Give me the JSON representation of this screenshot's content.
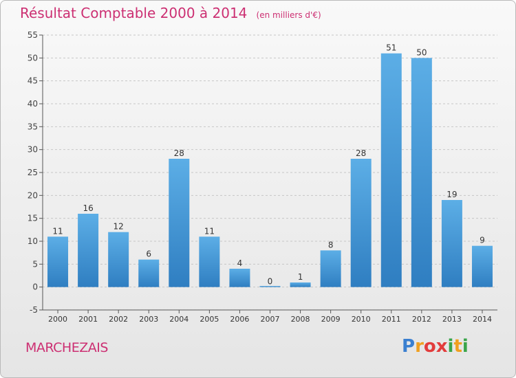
{
  "chart_data": {
    "type": "bar",
    "title": "Résultat Comptable 2000 à 2014",
    "subtitle": "(en milliers d'€)",
    "categories": [
      "2000",
      "2001",
      "2002",
      "2003",
      "2004",
      "2005",
      "2006",
      "2007",
      "2008",
      "2009",
      "2010",
      "2011",
      "2012",
      "2013",
      "2014"
    ],
    "values": [
      11,
      16,
      12,
      6,
      28,
      11,
      4,
      0,
      1,
      8,
      28,
      51,
      50,
      19,
      9
    ],
    "value_labels": [
      "11",
      "16",
      "12",
      "6",
      "28",
      "11",
      "4",
      "0",
      "1",
      "8",
      "28",
      "51",
      "50",
      "19",
      "9"
    ],
    "yticks": [
      "-5",
      "0",
      "5",
      "10",
      "15",
      "20",
      "25",
      "30",
      "35",
      "40",
      "45",
      "50",
      "55"
    ],
    "ylim": [
      -5,
      55
    ],
    "grid": true,
    "bar_color": "#4a9fdb"
  },
  "footer": {
    "commune": "MARCHEZAIS",
    "logo_text": "Proxiti",
    "logo_letters": [
      "P",
      "r",
      "o",
      "x",
      "i",
      "t",
      "i"
    ],
    "logo_colors": [
      "#3a7fd0",
      "#f0a020",
      "#e23c3c",
      "#e23c3c",
      "#3aa54a",
      "#f0a020",
      "#3aa54a"
    ]
  }
}
